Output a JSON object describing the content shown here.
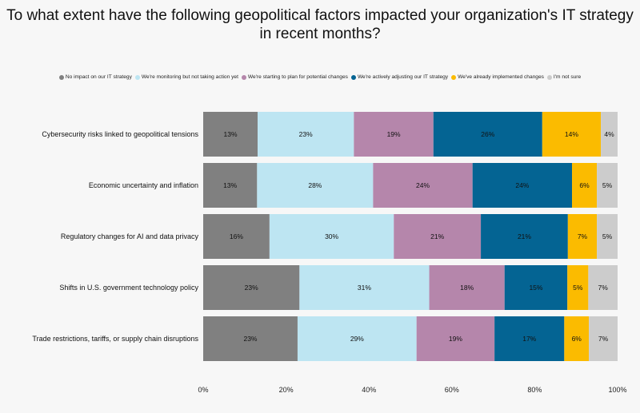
{
  "chart_data": {
    "type": "bar",
    "orientation": "horizontal",
    "stacked": true,
    "title": "To what extent have the following geopolitical factors impacted your organization's IT strategy in recent months?",
    "title_lines": [
      "To what extent have the following geopolitical factors impacted your organization's IT strategy",
      "in recent months?"
    ],
    "legend_position": "top",
    "categories": [
      "Cybersecurity risks linked to geopolitical tensions",
      "Economic uncertainty and inflation",
      "Regulatory changes for AI and data privacy",
      "Shifts in U.S. government technology policy",
      "Trade restrictions, tariffs, or supply chain disruptions"
    ],
    "series": [
      {
        "name": "No impact on our IT strategy",
        "color": "#808080",
        "label_color": "#111111",
        "values": [
          13,
          13,
          16,
          23,
          23
        ],
        "labels": [
          "13%",
          "13%",
          "16%",
          "23%",
          "23%"
        ]
      },
      {
        "name": "We're monitoring but not taking action yet",
        "color": "#bde5f2",
        "label_color": "#111111",
        "values": [
          23,
          28,
          30,
          31,
          29
        ],
        "labels": [
          "23%",
          "28%",
          "30%",
          "31%",
          "29%"
        ]
      },
      {
        "name": "We're starting to plan for potential changes",
        "color": "#b586ab",
        "label_color": "#111111",
        "values": [
          19,
          24,
          21,
          18,
          19
        ],
        "labels": [
          "19%",
          "24%",
          "21%",
          "18%",
          "19%"
        ]
      },
      {
        "name": "We're actively adjusting our IT strategy",
        "color": "#046493",
        "label_color": "#111111",
        "values": [
          26,
          24,
          21,
          15,
          17
        ],
        "labels": [
          "26%",
          "24%",
          "21%",
          "15%",
          "17%"
        ]
      },
      {
        "name": "We've already implemented changes",
        "color": "#fbbb00",
        "label_color": "#111111",
        "values": [
          14,
          6,
          7,
          5,
          6
        ],
        "labels": [
          "14%",
          "6%",
          "7%",
          "5%",
          "6%"
        ]
      },
      {
        "name": "I'm not sure",
        "color": "#cccccc",
        "label_color": "#111111",
        "values": [
          4,
          5,
          5,
          7,
          7
        ],
        "labels": [
          "4%",
          "5%",
          "5%",
          "7%",
          "7%"
        ]
      }
    ],
    "xlim": [
      0,
      100
    ],
    "x_ticks": [
      0,
      20,
      40,
      60,
      80,
      100
    ],
    "x_tick_labels": [
      "0%",
      "20%",
      "40%",
      "60%",
      "80%",
      "100%"
    ],
    "grid": false
  }
}
